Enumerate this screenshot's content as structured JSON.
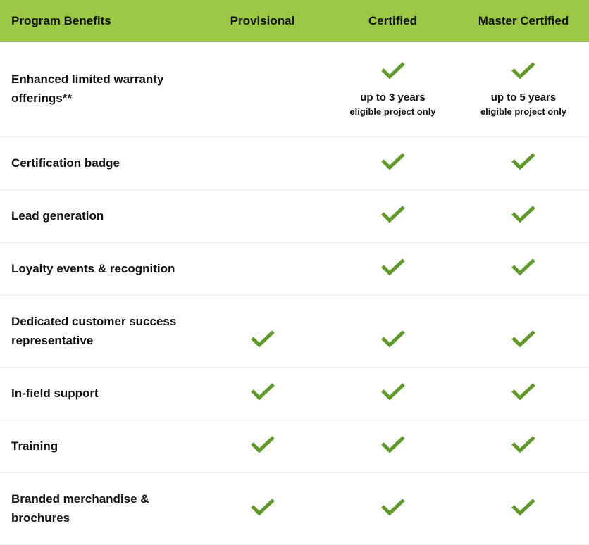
{
  "colors": {
    "header_bg": "#9bc945",
    "check": "#5e9a28"
  },
  "header": [
    "Program Benefits",
    "Provisional",
    "Certified",
    "Master Certified"
  ],
  "rows": [
    {
      "label": "Enhanced limited warranty offerings**",
      "checks": [
        false,
        true,
        true
      ],
      "notes": [
        null,
        {
          "line1": "up to 3 years",
          "line2": "eligible project only"
        },
        {
          "line1": "up to 5 years",
          "line2": "eligible project only"
        }
      ]
    },
    {
      "label": "Certification badge",
      "checks": [
        false,
        true,
        true
      ]
    },
    {
      "label": "Lead generation",
      "checks": [
        false,
        true,
        true
      ]
    },
    {
      "label": "Loyalty events & recognition",
      "checks": [
        false,
        true,
        true
      ]
    },
    {
      "label": "Dedicated customer success representative",
      "checks": [
        true,
        true,
        true
      ]
    },
    {
      "label": "In-field support",
      "checks": [
        true,
        true,
        true
      ]
    },
    {
      "label": "Training",
      "checks": [
        true,
        true,
        true
      ]
    },
    {
      "label": "Branded merchandise & brochures",
      "checks": [
        true,
        true,
        true
      ]
    }
  ]
}
